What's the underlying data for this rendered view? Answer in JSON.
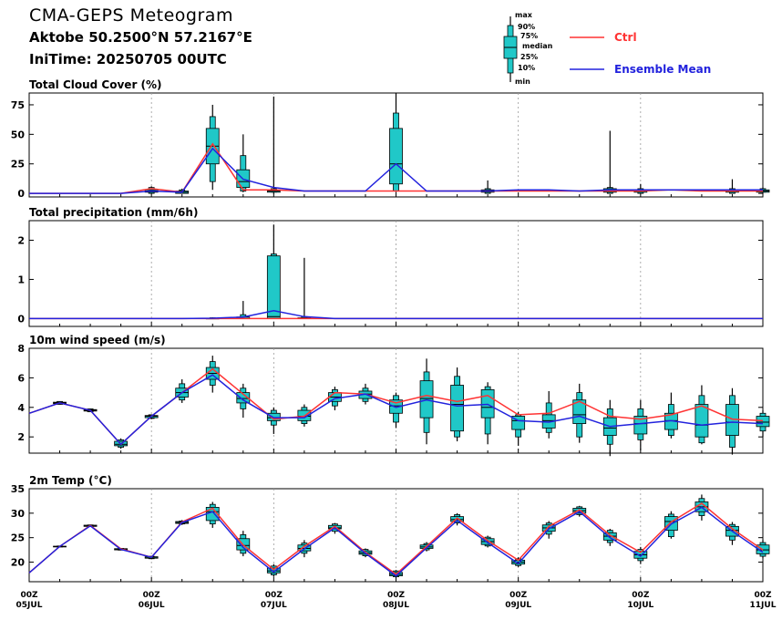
{
  "header": {
    "title": "CMA-GEPS Meteogram",
    "location": "Aktobe 50.2500°N 57.2167°E",
    "init_time": "IniTime: 20250705 00UTC"
  },
  "legend": {
    "box_labels": [
      "max",
      "90%",
      "75%",
      "median",
      "25%",
      "10%",
      "min"
    ],
    "ctrl_label": "Ctrl",
    "mean_label": "Ensemble Mean",
    "ctrl_color": "#ff3333",
    "mean_color": "#2222dd",
    "box_color": "#20c8c8"
  },
  "chart_data": [
    {
      "type": "box",
      "title": "Total Cloud Cover (%)",
      "ylim": [
        -3,
        85
      ],
      "yticks": [
        0,
        25,
        50,
        75
      ],
      "x": [
        0,
        6,
        12,
        18,
        24,
        30,
        36,
        42,
        48,
        54,
        60,
        66,
        72,
        78,
        84,
        90,
        96,
        102,
        108,
        114,
        120,
        126,
        132,
        138,
        144
      ],
      "ctrl": [
        0,
        0,
        0,
        0,
        4,
        1,
        42,
        3,
        3,
        2,
        2,
        2,
        2,
        2,
        2,
        2,
        2,
        2,
        2,
        2,
        2,
        3,
        2,
        2,
        2
      ],
      "mean": [
        0,
        0,
        0,
        0,
        2,
        1,
        38,
        12,
        5,
        2,
        2,
        2,
        25,
        2,
        2,
        2,
        3,
        3,
        2,
        3,
        3,
        3,
        3,
        3,
        3
      ],
      "boxes": [
        {
          "i": 4,
          "min": 0,
          "p10": 0,
          "p25": 1,
          "med": 2,
          "p75": 3,
          "p90": 5,
          "max": 6
        },
        {
          "i": 5,
          "min": 0,
          "p10": 0,
          "p25": 0,
          "med": 1,
          "p75": 2,
          "p90": 3,
          "max": 4
        },
        {
          "i": 6,
          "min": 3,
          "p10": 10,
          "p25": 25,
          "med": 40,
          "p75": 55,
          "p90": 65,
          "max": 75
        },
        {
          "i": 7,
          "min": 1,
          "p10": 2,
          "p25": 5,
          "med": 10,
          "p75": 20,
          "p90": 32,
          "max": 50
        },
        {
          "i": 8,
          "min": 0,
          "p10": 1,
          "p25": 1,
          "med": 2,
          "p75": 3,
          "p90": 4,
          "max": 82
        },
        {
          "i": 12,
          "min": 1,
          "p10": 2,
          "p25": 8,
          "med": 25,
          "p75": 55,
          "p90": 68,
          "max": 85
        },
        {
          "i": 15,
          "min": 0,
          "p10": 0,
          "p25": 1,
          "med": 2,
          "p75": 3,
          "p90": 4,
          "max": 11
        },
        {
          "i": 19,
          "min": 0,
          "p10": 0,
          "p25": 1,
          "med": 2,
          "p75": 4,
          "p90": 5,
          "max": 53
        },
        {
          "i": 20,
          "min": 0,
          "p10": 0,
          "p25": 1,
          "med": 2,
          "p75": 3,
          "p90": 4,
          "max": 8
        },
        {
          "i": 23,
          "min": 0,
          "p10": 0,
          "p25": 1,
          "med": 2,
          "p75": 3,
          "p90": 4,
          "max": 12
        },
        {
          "i": 24,
          "min": 0,
          "p10": 1,
          "p25": 1,
          "med": 2,
          "p75": 3,
          "p90": 4,
          "max": 5
        }
      ]
    },
    {
      "type": "box",
      "title": "Total precipitation (mm/6h)",
      "ylim": [
        -0.2,
        2.5
      ],
      "yticks": [
        0,
        1,
        2
      ],
      "x": [
        0,
        6,
        12,
        18,
        24,
        30,
        36,
        42,
        48,
        54,
        60,
        66,
        72,
        78,
        84,
        90,
        96,
        102,
        108,
        114,
        120,
        126,
        132,
        138,
        144
      ],
      "ctrl": [
        0,
        0,
        0,
        0,
        0,
        0,
        0,
        0,
        0,
        0,
        0,
        0,
        0,
        0,
        0,
        0,
        0,
        0,
        0,
        0,
        0,
        0,
        0,
        0,
        0
      ],
      "mean": [
        0,
        0,
        0,
        0,
        0,
        0,
        0.01,
        0.04,
        0.2,
        0.05,
        0,
        0,
        0,
        0,
        0,
        0,
        0,
        0,
        0,
        0,
        0,
        0,
        0,
        0,
        0
      ],
      "boxes": [
        {
          "i": 6,
          "min": 0,
          "p10": 0,
          "p25": 0,
          "med": 0,
          "p75": 0.01,
          "p90": 0.02,
          "max": 0.03
        },
        {
          "i": 7,
          "min": 0,
          "p10": 0,
          "p25": 0,
          "med": 0,
          "p75": 0.04,
          "p90": 0.1,
          "max": 0.45
        },
        {
          "i": 8,
          "min": 0,
          "p10": 0,
          "p25": 0,
          "med": 0.05,
          "p75": 1.6,
          "p90": 1.65,
          "max": 2.4
        },
        {
          "i": 9,
          "min": 0,
          "p10": 0,
          "p25": 0,
          "med": 0,
          "p75": 0.02,
          "p90": 0.05,
          "max": 1.55
        }
      ]
    },
    {
      "type": "box",
      "title": "10m wind speed (m/s)",
      "ylim": [
        0.9,
        8
      ],
      "yticks": [
        2,
        4,
        6,
        8
      ],
      "x": [
        0,
        6,
        12,
        18,
        24,
        30,
        36,
        42,
        48,
        54,
        60,
        66,
        72,
        78,
        84,
        90,
        96,
        102,
        108,
        114,
        120,
        126,
        132,
        138,
        144
      ],
      "ctrl": [
        3.6,
        4.3,
        3.8,
        1.5,
        3.4,
        5.0,
        6.6,
        4.9,
        3.2,
        3.4,
        5.0,
        4.9,
        4.3,
        4.8,
        4.4,
        4.8,
        3.5,
        3.6,
        4.4,
        3.4,
        3.2,
        3.5,
        4.1,
        3.2,
        3.1
      ],
      "mean": [
        3.6,
        4.3,
        3.8,
        1.5,
        3.4,
        5.0,
        6.2,
        4.5,
        3.3,
        3.3,
        4.6,
        4.9,
        4.0,
        4.5,
        4.1,
        4.2,
        3.1,
        3.0,
        3.4,
        2.7,
        2.9,
        3.1,
        2.8,
        3.0,
        2.9
      ],
      "boxes": [
        {
          "i": 1,
          "min": 4.2,
          "p10": 4.2,
          "p25": 4.25,
          "med": 4.3,
          "p75": 4.35,
          "p90": 4.4,
          "max": 4.4
        },
        {
          "i": 2,
          "min": 3.7,
          "p10": 3.7,
          "p25": 3.75,
          "med": 3.8,
          "p75": 3.85,
          "p90": 3.9,
          "max": 3.9
        },
        {
          "i": 3,
          "min": 1.2,
          "p10": 1.3,
          "p25": 1.4,
          "med": 1.5,
          "p75": 1.7,
          "p90": 1.8,
          "max": 1.9
        },
        {
          "i": 4,
          "min": 3.2,
          "p10": 3.25,
          "p25": 3.3,
          "med": 3.4,
          "p75": 3.45,
          "p90": 3.5,
          "max": 3.5
        },
        {
          "i": 5,
          "min": 4.3,
          "p10": 4.5,
          "p25": 4.7,
          "med": 5.0,
          "p75": 5.3,
          "p90": 5.6,
          "max": 5.9
        },
        {
          "i": 6,
          "min": 5.0,
          "p10": 5.5,
          "p25": 5.9,
          "med": 6.3,
          "p75": 6.7,
          "p90": 7.1,
          "max": 7.5
        },
        {
          "i": 7,
          "min": 3.3,
          "p10": 3.9,
          "p25": 4.3,
          "med": 4.6,
          "p75": 5.0,
          "p90": 5.3,
          "max": 5.6
        },
        {
          "i": 8,
          "min": 2.2,
          "p10": 2.8,
          "p25": 3.1,
          "med": 3.3,
          "p75": 3.6,
          "p90": 3.8,
          "max": 4.0
        },
        {
          "i": 9,
          "min": 2.7,
          "p10": 2.9,
          "p25": 3.1,
          "med": 3.4,
          "p75": 3.8,
          "p90": 4.0,
          "max": 4.2
        },
        {
          "i": 10,
          "min": 3.8,
          "p10": 4.1,
          "p25": 4.4,
          "med": 4.7,
          "p75": 5.0,
          "p90": 5.2,
          "max": 5.4
        },
        {
          "i": 11,
          "min": 4.2,
          "p10": 4.4,
          "p25": 4.6,
          "med": 4.9,
          "p75": 5.1,
          "p90": 5.3,
          "max": 5.6
        },
        {
          "i": 12,
          "min": 2.6,
          "p10": 3.0,
          "p25": 3.6,
          "med": 4.1,
          "p75": 4.5,
          "p90": 4.8,
          "max": 5.0
        },
        {
          "i": 13,
          "min": 1.5,
          "p10": 2.3,
          "p25": 3.3,
          "med": 4.6,
          "p75": 5.8,
          "p90": 6.4,
          "max": 7.3
        },
        {
          "i": 14,
          "min": 1.7,
          "p10": 2.0,
          "p25": 2.4,
          "med": 4.2,
          "p75": 5.5,
          "p90": 6.1,
          "max": 6.7
        },
        {
          "i": 15,
          "min": 1.5,
          "p10": 2.2,
          "p25": 3.3,
          "med": 4.0,
          "p75": 5.2,
          "p90": 5.4,
          "max": 5.7
        },
        {
          "i": 16,
          "min": 1.4,
          "p10": 2.0,
          "p25": 2.5,
          "med": 3.1,
          "p75": 3.4,
          "p90": 3.5,
          "max": 3.7
        },
        {
          "i": 17,
          "min": 1.9,
          "p10": 2.3,
          "p25": 2.6,
          "med": 3.1,
          "p75": 3.5,
          "p90": 4.3,
          "max": 5.1
        },
        {
          "i": 18,
          "min": 1.6,
          "p10": 2.0,
          "p25": 2.9,
          "med": 3.5,
          "p75": 4.5,
          "p90": 5.0,
          "max": 5.6
        },
        {
          "i": 19,
          "min": 0.7,
          "p10": 1.5,
          "p25": 2.1,
          "med": 2.6,
          "p75": 3.3,
          "p90": 3.9,
          "max": 4.5
        },
        {
          "i": 20,
          "min": 1.1,
          "p10": 1.8,
          "p25": 2.2,
          "med": 2.9,
          "p75": 3.4,
          "p90": 3.9,
          "max": 4.5
        },
        {
          "i": 21,
          "min": 1.9,
          "p10": 2.1,
          "p25": 2.5,
          "med": 3.1,
          "p75": 3.6,
          "p90": 4.2,
          "max": 5.0
        },
        {
          "i": 22,
          "min": 1.5,
          "p10": 1.6,
          "p25": 2.0,
          "med": 2.8,
          "p75": 4.2,
          "p90": 4.8,
          "max": 5.5
        },
        {
          "i": 23,
          "min": 0.8,
          "p10": 1.3,
          "p25": 2.1,
          "med": 3.0,
          "p75": 4.2,
          "p90": 4.8,
          "max": 5.3
        },
        {
          "i": 24,
          "min": 2.0,
          "p10": 2.4,
          "p25": 2.7,
          "med": 3.0,
          "p75": 3.4,
          "p90": 3.6,
          "max": 3.8
        }
      ]
    },
    {
      "type": "box",
      "title": "2m Temp (°C)",
      "ylim": [
        16,
        35
      ],
      "yticks": [
        20,
        25,
        30,
        35
      ],
      "x": [
        0,
        6,
        12,
        18,
        24,
        30,
        36,
        42,
        48,
        54,
        60,
        66,
        72,
        78,
        84,
        90,
        96,
        102,
        108,
        114,
        120,
        126,
        132,
        138,
        144
      ],
      "ctrl": [
        17.8,
        23.2,
        27.5,
        22.7,
        21.0,
        28.2,
        31.0,
        23.5,
        18.5,
        23.2,
        27.3,
        22.0,
        17.5,
        23.2,
        29.0,
        24.4,
        20.4,
        27.3,
        30.7,
        25.5,
        22.0,
        28.2,
        32.0,
        26.8,
        22.5
      ],
      "mean": [
        17.8,
        23.2,
        27.4,
        22.6,
        21.0,
        28.1,
        30.3,
        23.0,
        18.0,
        22.7,
        27.0,
        21.8,
        17.2,
        22.9,
        28.5,
        24.0,
        19.7,
        26.8,
        30.3,
        25.0,
        21.2,
        27.8,
        31.2,
        26.3,
        22.0
      ],
      "boxes": [
        {
          "i": 1,
          "min": 23.1,
          "p10": 23.1,
          "p25": 23.15,
          "med": 23.2,
          "p75": 23.25,
          "p90": 23.3,
          "max": 23.3
        },
        {
          "i": 2,
          "min": 27.2,
          "p10": 27.25,
          "p25": 27.3,
          "med": 27.4,
          "p75": 27.55,
          "p90": 27.6,
          "max": 27.7
        },
        {
          "i": 3,
          "min": 22.4,
          "p10": 22.45,
          "p25": 22.5,
          "med": 22.6,
          "p75": 22.75,
          "p90": 22.8,
          "max": 22.9
        },
        {
          "i": 4,
          "min": 20.6,
          "p10": 20.7,
          "p25": 20.8,
          "med": 21.0,
          "p75": 21.1,
          "p90": 21.2,
          "max": 21.3
        },
        {
          "i": 5,
          "min": 27.6,
          "p10": 27.8,
          "p25": 27.9,
          "med": 28.1,
          "p75": 28.3,
          "p90": 28.4,
          "max": 28.6
        },
        {
          "i": 6,
          "min": 27.0,
          "p10": 27.8,
          "p25": 28.5,
          "med": 30.3,
          "p75": 31.2,
          "p90": 31.8,
          "max": 32.3
        },
        {
          "i": 7,
          "min": 21.2,
          "p10": 21.8,
          "p25": 22.5,
          "med": 23.4,
          "p75": 24.8,
          "p90": 25.6,
          "max": 26.4
        },
        {
          "i": 8,
          "min": 17.0,
          "p10": 17.4,
          "p25": 17.8,
          "med": 18.2,
          "p75": 18.8,
          "p90": 19.2,
          "max": 19.6
        },
        {
          "i": 9,
          "min": 21.0,
          "p10": 21.8,
          "p25": 22.3,
          "med": 22.8,
          "p75": 23.5,
          "p90": 23.9,
          "max": 24.5
        },
        {
          "i": 10,
          "min": 25.8,
          "p10": 26.3,
          "p25": 26.8,
          "med": 27.0,
          "p75": 27.5,
          "p90": 27.8,
          "max": 28.0
        },
        {
          "i": 11,
          "min": 21.0,
          "p10": 21.3,
          "p25": 21.6,
          "med": 21.9,
          "p75": 22.3,
          "p90": 22.6,
          "max": 22.8
        },
        {
          "i": 12,
          "min": 16.8,
          "p10": 17.0,
          "p25": 17.2,
          "med": 17.5,
          "p75": 17.9,
          "p90": 18.2,
          "max": 18.4
        },
        {
          "i": 13,
          "min": 22.2,
          "p10": 22.5,
          "p25": 22.8,
          "med": 23.1,
          "p75": 23.5,
          "p90": 23.8,
          "max": 24.1
        },
        {
          "i": 14,
          "min": 27.5,
          "p10": 28.0,
          "p25": 28.3,
          "med": 28.7,
          "p75": 29.3,
          "p90": 29.7,
          "max": 30.0
        },
        {
          "i": 15,
          "min": 23.0,
          "p10": 23.3,
          "p25": 23.6,
          "med": 24.2,
          "p75": 24.8,
          "p90": 25.1,
          "max": 25.4
        },
        {
          "i": 16,
          "min": 19.0,
          "p10": 19.3,
          "p25": 19.6,
          "med": 20.0,
          "p75": 20.4,
          "p90": 20.7,
          "max": 21.0
        },
        {
          "i": 17,
          "min": 24.8,
          "p10": 25.7,
          "p25": 26.3,
          "med": 27.0,
          "p75": 27.6,
          "p90": 28.0,
          "max": 28.4
        },
        {
          "i": 18,
          "min": 29.3,
          "p10": 29.7,
          "p25": 30.0,
          "med": 30.5,
          "p75": 31.0,
          "p90": 31.3,
          "max": 31.5
        },
        {
          "i": 19,
          "min": 23.3,
          "p10": 24.0,
          "p25": 24.5,
          "med": 25.3,
          "p75": 26.0,
          "p90": 26.5,
          "max": 26.8
        },
        {
          "i": 20,
          "min": 19.6,
          "p10": 20.3,
          "p25": 20.8,
          "med": 21.5,
          "p75": 22.2,
          "p90": 22.6,
          "max": 23.1
        },
        {
          "i": 21,
          "min": 24.8,
          "p10": 25.2,
          "p25": 26.5,
          "med": 28.3,
          "p75": 29.3,
          "p90": 29.8,
          "max": 30.4
        },
        {
          "i": 22,
          "min": 28.5,
          "p10": 29.5,
          "p25": 30.3,
          "med": 31.3,
          "p75": 32.3,
          "p90": 33.0,
          "max": 33.8
        },
        {
          "i": 23,
          "min": 23.5,
          "p10": 24.5,
          "p25": 25.3,
          "med": 26.5,
          "p75": 27.3,
          "p90": 27.7,
          "max": 28.2
        },
        {
          "i": 24,
          "min": 20.8,
          "p10": 21.2,
          "p25": 21.7,
          "med": 22.5,
          "p75": 23.5,
          "p90": 24.0,
          "max": 24.6
        }
      ]
    }
  ],
  "xaxis": {
    "tick_hours": [
      0,
      24,
      48,
      72,
      96,
      120,
      144
    ],
    "tick_line1": [
      "00Z",
      "00Z",
      "00Z",
      "00Z",
      "00Z",
      "00Z",
      "00Z"
    ],
    "tick_line2": [
      "05JUL",
      "06JUL",
      "07JUL",
      "08JUL",
      "09JUL",
      "10JUL",
      "11JUL"
    ]
  }
}
